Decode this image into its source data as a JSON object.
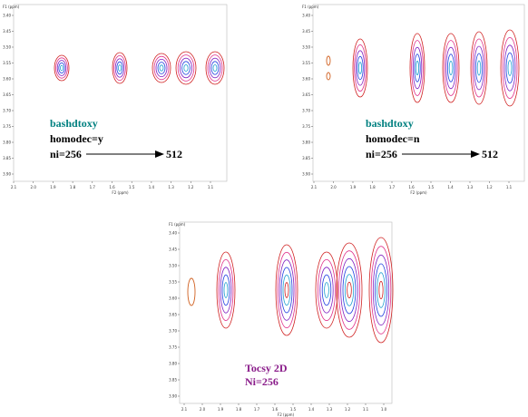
{
  "panels": [
    {
      "y_axis_label": "F1 (ppm)",
      "x_axis_label": "F2 (ppm)",
      "xticks": [
        "2.1",
        "2.0",
        "1.9",
        "1.8",
        "1.7",
        "1.6",
        "1.5",
        "1.4",
        "1.3",
        "1.2",
        "1.1"
      ],
      "yticks": [
        "3.40",
        "3.45",
        "3.50",
        "3.55",
        "3.60",
        "3.65",
        "3.70",
        "3.75",
        "3.80",
        "3.85",
        "3.90"
      ],
      "method": "bashdtoxy",
      "setting": "homodec=y",
      "from": "ni=256",
      "to": "512"
    },
    {
      "y_axis_label": "F1 (ppm)",
      "x_axis_label": "F2 (ppm)",
      "xticks": [
        "2.1",
        "2.0",
        "1.9",
        "1.8",
        "1.7",
        "1.6",
        "1.5",
        "1.4",
        "1.3",
        "1.2",
        "1.1"
      ],
      "yticks": [
        "3.40",
        "3.45",
        "3.50",
        "3.55",
        "3.60",
        "3.65",
        "3.70",
        "3.75",
        "3.80",
        "3.85",
        "3.90"
      ],
      "method": "bashdtoxy",
      "setting": "homodec=n",
      "from": "ni=256",
      "to": "512"
    },
    {
      "y_axis_label": "F1 (ppm)",
      "x_axis_label": "F2 (ppm)",
      "xticks": [
        "2.1",
        "2.0",
        "1.9",
        "1.8",
        "1.7",
        "1.6",
        "1.5",
        "1.4",
        "1.3",
        "1.2",
        "1.1",
        "1.0"
      ],
      "yticks": [
        "3.40",
        "3.45",
        "3.50",
        "3.55",
        "3.60",
        "3.65",
        "3.70",
        "3.75",
        "3.80",
        "3.85",
        "3.90"
      ],
      "method": "Tocsy 2D",
      "setting": "Ni=256"
    }
  ]
}
